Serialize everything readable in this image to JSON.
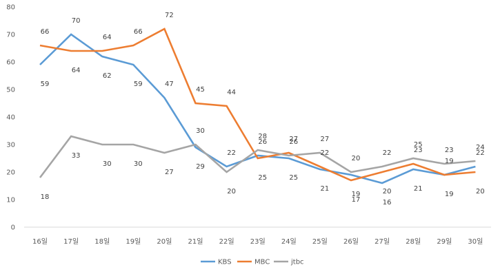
{
  "chart_data": {
    "type": "line",
    "title": "",
    "xlabel": "",
    "ylabel": "",
    "ylim": [
      0,
      80
    ],
    "yticks": [
      0,
      10,
      20,
      30,
      40,
      50,
      60,
      70,
      80
    ],
    "grid": false,
    "legend_position": "bottom",
    "categories": [
      "16일",
      "17일",
      "18일",
      "19일",
      "20일",
      "21일",
      "22일",
      "23일",
      "24일",
      "25일",
      "26일",
      "27일",
      "28일",
      "29일",
      "30일"
    ],
    "series": [
      {
        "name": "KBS",
        "color": "#5b9bd5",
        "values": [
          59,
          70,
          62,
          59,
          47,
          29,
          22,
          26,
          25,
          21,
          19,
          16,
          21,
          19,
          22
        ]
      },
      {
        "name": "MBC",
        "color": "#ed7d31",
        "values": [
          66,
          64,
          64,
          66,
          72,
          45,
          44,
          25,
          27,
          22,
          17,
          20,
          23,
          19,
          20
        ]
      },
      {
        "name": "jtbc",
        "color": "#a5a5a5",
        "values": [
          18,
          33,
          30,
          30,
          27,
          30,
          20,
          28,
          26,
          27,
          20,
          22,
          25,
          23,
          24
        ]
      }
    ]
  }
}
